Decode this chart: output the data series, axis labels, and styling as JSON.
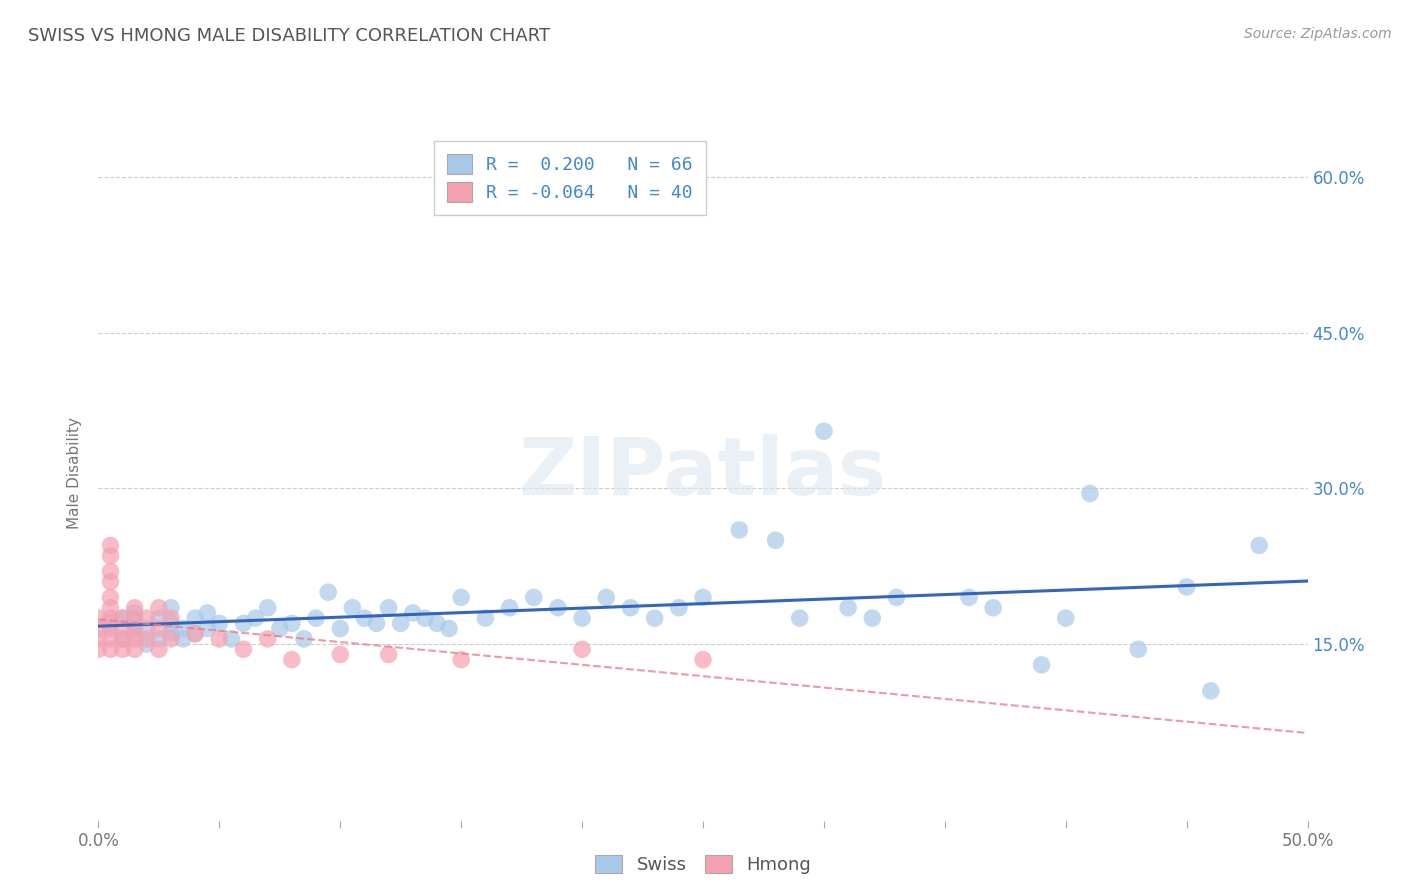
{
  "title": "SWISS VS HMONG MALE DISABILITY CORRELATION CHART",
  "source": "Source: ZipAtlas.com",
  "ylabel": "Male Disability",
  "xlim": [
    0.0,
    0.5
  ],
  "ylim": [
    -0.02,
    0.65
  ],
  "plot_ylim": [
    0.0,
    0.65
  ],
  "xticks": [
    0.0,
    0.05,
    0.1,
    0.15,
    0.2,
    0.25,
    0.3,
    0.35,
    0.4,
    0.45,
    0.5
  ],
  "xtick_labels": [
    "0.0%",
    "",
    "",
    "",
    "",
    "",
    "",
    "",
    "",
    "",
    "50.0%"
  ],
  "ytick_positions": [
    0.15,
    0.3,
    0.45,
    0.6
  ],
  "ytick_labels": [
    "15.0%",
    "30.0%",
    "45.0%",
    "60.0%"
  ],
  "swiss_color": "#a8c8e8",
  "hmong_color": "#f4a0b0",
  "swiss_line_color": "#3366bb",
  "hmong_line_color": "#f4a0b0",
  "swiss_R": 0.2,
  "swiss_N": 66,
  "hmong_R": -0.064,
  "hmong_N": 40,
  "watermark": "ZIPatlas",
  "grid_color": "#cccccc",
  "swiss_x": [
    0.005,
    0.01,
    0.01,
    0.015,
    0.015,
    0.015,
    0.02,
    0.02,
    0.025,
    0.025,
    0.03,
    0.03,
    0.03,
    0.035,
    0.035,
    0.04,
    0.04,
    0.045,
    0.045,
    0.05,
    0.055,
    0.06,
    0.065,
    0.07,
    0.075,
    0.08,
    0.085,
    0.09,
    0.095,
    0.1,
    0.105,
    0.11,
    0.115,
    0.12,
    0.125,
    0.13,
    0.135,
    0.14,
    0.145,
    0.15,
    0.16,
    0.17,
    0.18,
    0.19,
    0.2,
    0.21,
    0.22,
    0.23,
    0.24,
    0.25,
    0.265,
    0.28,
    0.29,
    0.3,
    0.31,
    0.32,
    0.33,
    0.36,
    0.37,
    0.39,
    0.4,
    0.41,
    0.43,
    0.45,
    0.46,
    0.48
  ],
  "swiss_y": [
    0.17,
    0.155,
    0.175,
    0.16,
    0.17,
    0.18,
    0.15,
    0.165,
    0.155,
    0.175,
    0.16,
    0.17,
    0.185,
    0.155,
    0.165,
    0.16,
    0.175,
    0.18,
    0.165,
    0.17,
    0.155,
    0.17,
    0.175,
    0.185,
    0.165,
    0.17,
    0.155,
    0.175,
    0.2,
    0.165,
    0.185,
    0.175,
    0.17,
    0.185,
    0.17,
    0.18,
    0.175,
    0.17,
    0.165,
    0.195,
    0.175,
    0.185,
    0.195,
    0.185,
    0.175,
    0.195,
    0.185,
    0.175,
    0.185,
    0.195,
    0.26,
    0.25,
    0.175,
    0.355,
    0.185,
    0.175,
    0.195,
    0.195,
    0.185,
    0.13,
    0.175,
    0.295,
    0.145,
    0.205,
    0.105,
    0.245
  ],
  "hmong_x": [
    0.0,
    0.0,
    0.0,
    0.0,
    0.005,
    0.005,
    0.005,
    0.005,
    0.005,
    0.005,
    0.005,
    0.005,
    0.005,
    0.005,
    0.01,
    0.01,
    0.01,
    0.01,
    0.015,
    0.015,
    0.015,
    0.015,
    0.015,
    0.02,
    0.02,
    0.025,
    0.025,
    0.025,
    0.03,
    0.03,
    0.04,
    0.05,
    0.06,
    0.07,
    0.08,
    0.1,
    0.12,
    0.15,
    0.2,
    0.25
  ],
  "hmong_y": [
    0.145,
    0.155,
    0.165,
    0.175,
    0.145,
    0.155,
    0.165,
    0.175,
    0.185,
    0.195,
    0.21,
    0.22,
    0.235,
    0.245,
    0.145,
    0.155,
    0.165,
    0.175,
    0.145,
    0.155,
    0.165,
    0.175,
    0.185,
    0.155,
    0.175,
    0.145,
    0.165,
    0.185,
    0.155,
    0.175,
    0.16,
    0.155,
    0.145,
    0.155,
    0.135,
    0.14,
    0.14,
    0.135,
    0.145,
    0.135
  ]
}
